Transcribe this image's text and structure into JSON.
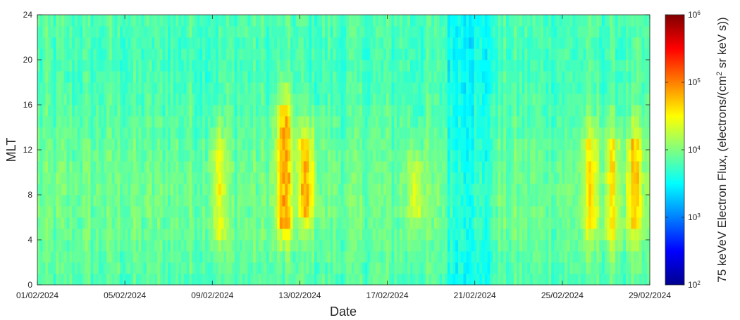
{
  "chart_data": {
    "type": "heatmap",
    "title": "",
    "xlabel": "Date",
    "ylabel": "MLT",
    "colorbar_label": {
      "text_before_sup": "75 keVeV Electron Flux, (electrons/(cm",
      "sup": "2",
      "text_after_sup": " sr keV s))"
    },
    "x_range": [
      "01/02/2024",
      "29/02/2024"
    ],
    "x_ticks": [
      "01/02/2024",
      "05/02/2024",
      "09/02/2024",
      "13/02/2024",
      "17/02/2024",
      "21/02/2024",
      "25/02/2024",
      "29/02/2024"
    ],
    "ylim": [
      0,
      24
    ],
    "y_ticks": [
      "0",
      "4",
      "8",
      "12",
      "16",
      "20",
      "24"
    ],
    "color_scale": "log",
    "clim": [
      100,
      1000000
    ],
    "colorbar_ticks": [
      {
        "base": "10",
        "exp": "2",
        "value": 100
      },
      {
        "base": "10",
        "exp": "3",
        "value": 1000
      },
      {
        "base": "10",
        "exp": "4",
        "value": 10000
      },
      {
        "base": "10",
        "exp": "5",
        "value": 100000
      },
      {
        "base": "10",
        "exp": "6",
        "value": 1000000
      }
    ],
    "colormap": "jet",
    "grid": false,
    "background_log10_flux": 3.85,
    "enhancement_episodes": [
      {
        "date": "09/02/2024",
        "log10_peak_flux": 4.35,
        "mlt_range": [
          4,
          13
        ]
      },
      {
        "date": "12/02/2024",
        "log10_peak_flux": 4.85,
        "mlt_range": [
          5,
          16
        ]
      },
      {
        "date": "13/02/2024",
        "log10_peak_flux": 4.75,
        "mlt_range": [
          6,
          13
        ]
      },
      {
        "date": "18/02/2024",
        "log10_peak_flux": 4.35,
        "mlt_range": [
          6,
          11
        ]
      },
      {
        "date": "26/02/2024",
        "log10_peak_flux": 4.5,
        "mlt_range": [
          5,
          13
        ]
      },
      {
        "date": "27/02/2024",
        "log10_peak_flux": 4.45,
        "mlt_range": [
          4,
          13
        ]
      },
      {
        "date": "28/02/2024",
        "log10_peak_flux": 4.6,
        "mlt_range": [
          5,
          13
        ]
      }
    ],
    "quiet_period": {
      "dates": [
        "20/02/2024",
        "21/02/2024"
      ],
      "log10_flux": 3.55
    }
  }
}
